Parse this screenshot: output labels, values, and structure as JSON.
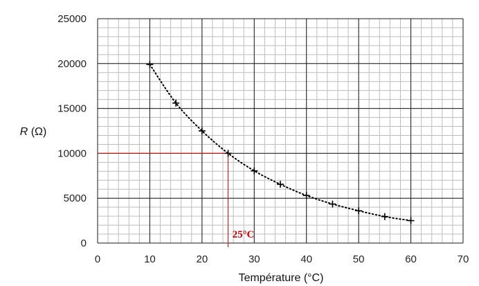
{
  "chart_data": {
    "type": "scatter",
    "title": "",
    "xlabel": "Température (°C)",
    "ylabel_italic": "R",
    "ylabel_unit": " (Ω)",
    "xlim": [
      0,
      70
    ],
    "ylim": [
      0,
      25000
    ],
    "x_ticks": [
      0,
      10,
      20,
      30,
      40,
      50,
      60,
      70
    ],
    "y_ticks": [
      0,
      5000,
      10000,
      15000,
      20000,
      25000
    ],
    "x_minor_step": 2,
    "y_minor_step": 1000,
    "grid": true,
    "series": [
      {
        "marker": "cross",
        "color": "#000000",
        "x": [
          10,
          15,
          20,
          25,
          30,
          35,
          40,
          45,
          50,
          55,
          60
        ],
        "y": [
          19900,
          15600,
          12500,
          10000,
          8050,
          6550,
          5300,
          4350,
          3600,
          2950,
          2500
        ]
      }
    ],
    "trendline": {
      "style": "dotted",
      "color": "#000000"
    },
    "annotation": {
      "text": "25°C",
      "color": "#cc0000",
      "x": 25,
      "y": 10000
    }
  }
}
